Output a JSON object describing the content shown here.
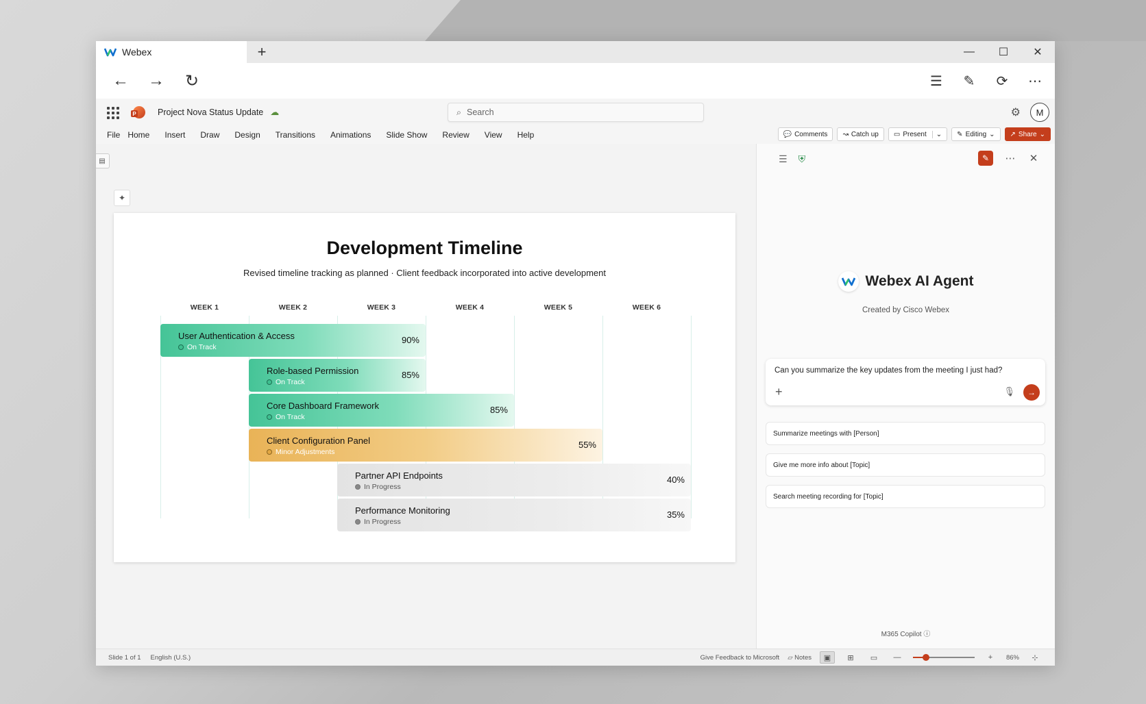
{
  "browser": {
    "tab_title": "Webex",
    "new_tab_icon": "+",
    "window_controls": [
      "minimize-icon",
      "maximize-icon",
      "close-icon"
    ]
  },
  "app": {
    "doc_title": "Project Nova Status Update",
    "search_placeholder": "Search",
    "avatar_initial": "M",
    "menu": [
      "File",
      "Home",
      "Insert",
      "Draw",
      "Design",
      "Transitions",
      "Animations",
      "Slide Show",
      "Review",
      "View",
      "Help"
    ],
    "actions": {
      "comments": "Comments",
      "catch_up": "Catch up",
      "present": "Present",
      "editing": "Editing",
      "share": "Share"
    }
  },
  "slide": {
    "title": "Development Timeline",
    "subtitle": "Revised timeline tracking as planned · Client feedback incorporated into active development",
    "weeks": [
      "WEEK 1",
      "WEEK 2",
      "WEEK 3",
      "WEEK 4",
      "WEEK 5",
      "WEEK 6"
    ],
    "tasks": [
      {
        "name": "User Authentication & Access",
        "status": "On Track",
        "percent": "90%",
        "start_week": 1,
        "end_week": 3,
        "style": "green"
      },
      {
        "name": "Role-based Permission",
        "status": "On Track",
        "percent": "85%",
        "start_week": 2,
        "end_week": 3,
        "style": "green"
      },
      {
        "name": "Core Dashboard Framework",
        "status": "On Track",
        "percent": "85%",
        "start_week": 2,
        "end_week": 4,
        "style": "green"
      },
      {
        "name": "Client Configuration Panel",
        "status": "Minor Adjustments",
        "percent": "55%",
        "start_week": 2,
        "end_week": 5,
        "style": "orange"
      },
      {
        "name": "Partner API Endpoints",
        "status": "In Progress",
        "percent": "40%",
        "start_week": 3,
        "end_week": 6,
        "style": "gray"
      },
      {
        "name": "Performance Monitoring",
        "status": "In Progress",
        "percent": "35%",
        "start_week": 3,
        "end_week": 6,
        "style": "gray"
      }
    ]
  },
  "statusbar": {
    "slide_count": "Slide 1 of 1",
    "language": "English (U.S.)",
    "feedback": "Give Feedback to Microsoft",
    "notes": "Notes",
    "zoom": "86%"
  },
  "copilot": {
    "agent_name": "Webex AI Agent",
    "created_by": "Created by Cisco Webex",
    "prompt_text": "Can you summarize the key updates from the meeting I just had?",
    "suggestions": [
      "Summarize meetings with [Person]",
      "Give me more info about [Topic]",
      "Search meeting recording for [Topic]"
    ],
    "footer": "M365 Copilot"
  }
}
